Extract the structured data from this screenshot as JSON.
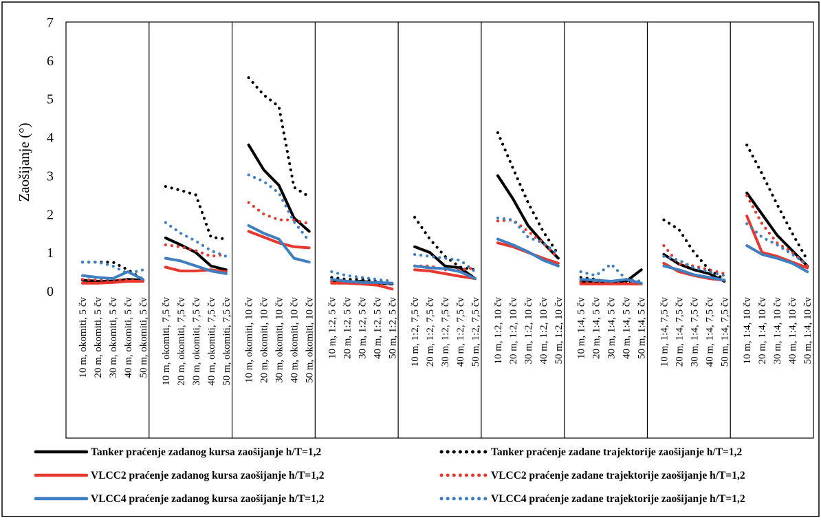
{
  "chart_data": {
    "type": "line",
    "title": "",
    "xlabel": "",
    "ylabel": "Zaošijanje (°)",
    "ylim": [
      0,
      7
    ],
    "yticks": [
      "0",
      "1",
      "2",
      "3",
      "4",
      "5",
      "6",
      "7"
    ],
    "grid": false,
    "legend_position": "bottom",
    "groups": [
      {
        "categories": [
          "10 m, okomiti, 5 čv",
          "20 m, okomiti, 5 čv",
          "30 m, okomiti, 5 čv",
          "40 m, okomiti, 5 čv",
          "50 m, okomiti, 5 čv"
        ]
      },
      {
        "categories": [
          "10 m, okomiti, 7,5 čv",
          "20 m, okomiti, 7,5 čv",
          "30 m, okomiti, 7,5 čv",
          "40 m, okomiti, 7,5 čv",
          "50 m, okomiti, 7,5 čv"
        ]
      },
      {
        "categories": [
          "10 m, okomiti, 10 čv",
          "20 m, okomiti, 10 čv",
          "30 m, okomiti, 10 čv",
          "40 m, okomiti, 10 čv",
          "50 m, okomiti, 10 čv"
        ]
      },
      {
        "categories": [
          "10 m, 1:2, 5 čv",
          "20 m, 1:2, 5 čv",
          "30 m, 1:2, 5 čv",
          "40 m, 1:2, 5 čv",
          "50 m, 1:2, 5 čv"
        ]
      },
      {
        "categories": [
          "10 m, 1:2, 7,5 čv",
          "20 m, 1:2, 7,5 čv",
          "30 m, 1:2, 7,5 čv",
          "40 m, 1:2, 7,5 čv",
          "50 m, 1:2, 7,5 čv"
        ]
      },
      {
        "categories": [
          "10 m, 1:2, 10 čv",
          "20 m, 1:2, 10 čv",
          "30 m, 1:2, 10 čv",
          "40 m, 1:2, 10 čv",
          "50 m, 1:2, 10 čv"
        ]
      },
      {
        "categories": [
          "10 m, 1:4, 5 čv",
          "20 m, 1:4, 5 čv",
          "30 m, 1:4, 5 čv",
          "40 m, 1:4, 5 čv",
          "50 m, 1:4, 5 čv"
        ]
      },
      {
        "categories": [
          "10 m, 1:4, 7,5 čv",
          "20 m, 1:4, 7,5 čv",
          "30 m, 1:4, 7,5 čv",
          "40 m, 1:4, 7,5 čv",
          "50 m, 1:4, 7,5 čv"
        ]
      },
      {
        "categories": [
          "10 m, 1:4, 10 čv",
          "20 m, 1:4, 10 čv",
          "30 m, 1:4, 10 čv",
          "40 m, 1:4, 10 čv",
          "50 m, 1:4, 10 čv"
        ]
      }
    ],
    "series": [
      {
        "name": "Tanker praćenje zadanog kursa zaošijanje h/T=1,2",
        "color": "#000000",
        "style": "solid",
        "values": [
          [
            0.28,
            0.25,
            0.25,
            0.3,
            0.28
          ],
          [
            1.38,
            1.2,
            1.0,
            0.65,
            0.55
          ],
          [
            3.8,
            3.15,
            2.75,
            1.9,
            1.55
          ],
          [
            0.25,
            0.22,
            0.25,
            0.2,
            0.18
          ],
          [
            1.15,
            1.0,
            0.65,
            0.6,
            0.32
          ],
          [
            3.0,
            2.4,
            1.7,
            1.25,
            0.85
          ],
          [
            0.25,
            0.2,
            0.22,
            0.25,
            0.55
          ],
          [
            0.95,
            0.7,
            0.55,
            0.45,
            0.25
          ],
          [
            2.55,
            2.0,
            1.45,
            1.05,
            0.65
          ]
        ]
      },
      {
        "name": "Tanker praćenje zadane trajektorije zaošijanje h/T=1,2",
        "color": "#000000",
        "style": "dotted",
        "values": [
          [
            0.75,
            0.75,
            0.75,
            0.55,
            0.3
          ],
          [
            2.72,
            2.62,
            2.5,
            1.4,
            1.35
          ],
          [
            5.55,
            5.1,
            4.8,
            2.7,
            2.45
          ],
          [
            0.35,
            0.3,
            0.3,
            0.25,
            0.2
          ],
          [
            1.92,
            1.35,
            0.9,
            0.62,
            0.55
          ],
          [
            4.12,
            3.2,
            2.3,
            1.55,
            0.95
          ],
          [
            0.35,
            0.3,
            0.2,
            0.25,
            0.2
          ],
          [
            1.85,
            1.6,
            1.0,
            0.55,
            0.3
          ],
          [
            3.8,
            3.05,
            2.25,
            1.5,
            0.8
          ]
        ]
      },
      {
        "name": "VLCC2 praćenje zadanog kursa zaošijanje h/T=1,2",
        "color": "#e8382e",
        "style": "solid",
        "values": [
          [
            0.2,
            0.2,
            0.22,
            0.25,
            0.25
          ],
          [
            0.62,
            0.52,
            0.52,
            0.55,
            0.5
          ],
          [
            1.55,
            1.4,
            1.25,
            1.15,
            1.12
          ],
          [
            0.2,
            0.2,
            0.18,
            0.15,
            0.05
          ],
          [
            0.55,
            0.52,
            0.45,
            0.38,
            0.32
          ],
          [
            1.25,
            1.15,
            1.0,
            0.85,
            0.72
          ],
          [
            0.18,
            0.18,
            0.18,
            0.18,
            0.18
          ],
          [
            0.72,
            0.5,
            0.4,
            0.32,
            0.28
          ],
          [
            1.95,
            1.0,
            0.9,
            0.75,
            0.6
          ]
        ]
      },
      {
        "name": "VLCC2 praćenje zadane trajektorije zaošijanje h/T=1,2",
        "color": "#e8382e",
        "style": "dotted",
        "values": [
          [
            0.3,
            0.28,
            0.3,
            0.28,
            0.25
          ],
          [
            1.2,
            1.15,
            1.05,
            0.9,
            0.95
          ],
          [
            2.3,
            2.0,
            1.85,
            1.85,
            1.75
          ],
          [
            0.25,
            0.22,
            0.2,
            0.2,
            0.18
          ],
          [
            0.65,
            0.65,
            0.55,
            0.55,
            0.6
          ],
          [
            1.82,
            1.85,
            1.55,
            1.25,
            0.85
          ],
          [
            0.22,
            0.2,
            0.2,
            0.2,
            0.18
          ],
          [
            1.18,
            0.7,
            0.65,
            0.55,
            0.45
          ],
          [
            2.48,
            1.75,
            1.25,
            1.0,
            0.65
          ]
        ]
      },
      {
        "name": "VLCC4 praćenje zadanog kursa zaošijanje h/T=1,2",
        "color": "#3e7fc1",
        "style": "solid",
        "values": [
          [
            0.4,
            0.35,
            0.32,
            0.5,
            0.3
          ],
          [
            0.85,
            0.78,
            0.65,
            0.52,
            0.45
          ],
          [
            1.7,
            1.5,
            1.35,
            0.85,
            0.75
          ],
          [
            0.3,
            0.25,
            0.22,
            0.22,
            0.2
          ],
          [
            0.65,
            0.6,
            0.58,
            0.5,
            0.32
          ],
          [
            1.35,
            1.2,
            1.02,
            0.8,
            0.65
          ],
          [
            0.3,
            0.28,
            0.25,
            0.3,
            0.2
          ],
          [
            0.65,
            0.55,
            0.42,
            0.35,
            0.28
          ],
          [
            1.18,
            0.95,
            0.85,
            0.72,
            0.5
          ]
        ]
      },
      {
        "name": "VLCC4 praćenje zadane trajektorije zaošijanje h/T=1,2",
        "color": "#3e7fc1",
        "style": "dotted",
        "values": [
          [
            0.75,
            0.75,
            0.65,
            0.45,
            0.55
          ],
          [
            1.78,
            1.5,
            1.3,
            1.05,
            0.9
          ],
          [
            3.02,
            2.85,
            2.55,
            1.8,
            1.3
          ],
          [
            0.5,
            0.4,
            0.35,
            0.3,
            0.25
          ],
          [
            0.95,
            0.9,
            0.85,
            0.8,
            0.5
          ],
          [
            1.9,
            1.85,
            1.4,
            1.25,
            0.95
          ],
          [
            0.5,
            0.4,
            0.7,
            0.3,
            0.25
          ],
          [
            0.9,
            0.8,
            0.6,
            0.5,
            0.4
          ],
          [
            1.75,
            1.4,
            1.2,
            0.95,
            0.7
          ]
        ]
      }
    ]
  }
}
